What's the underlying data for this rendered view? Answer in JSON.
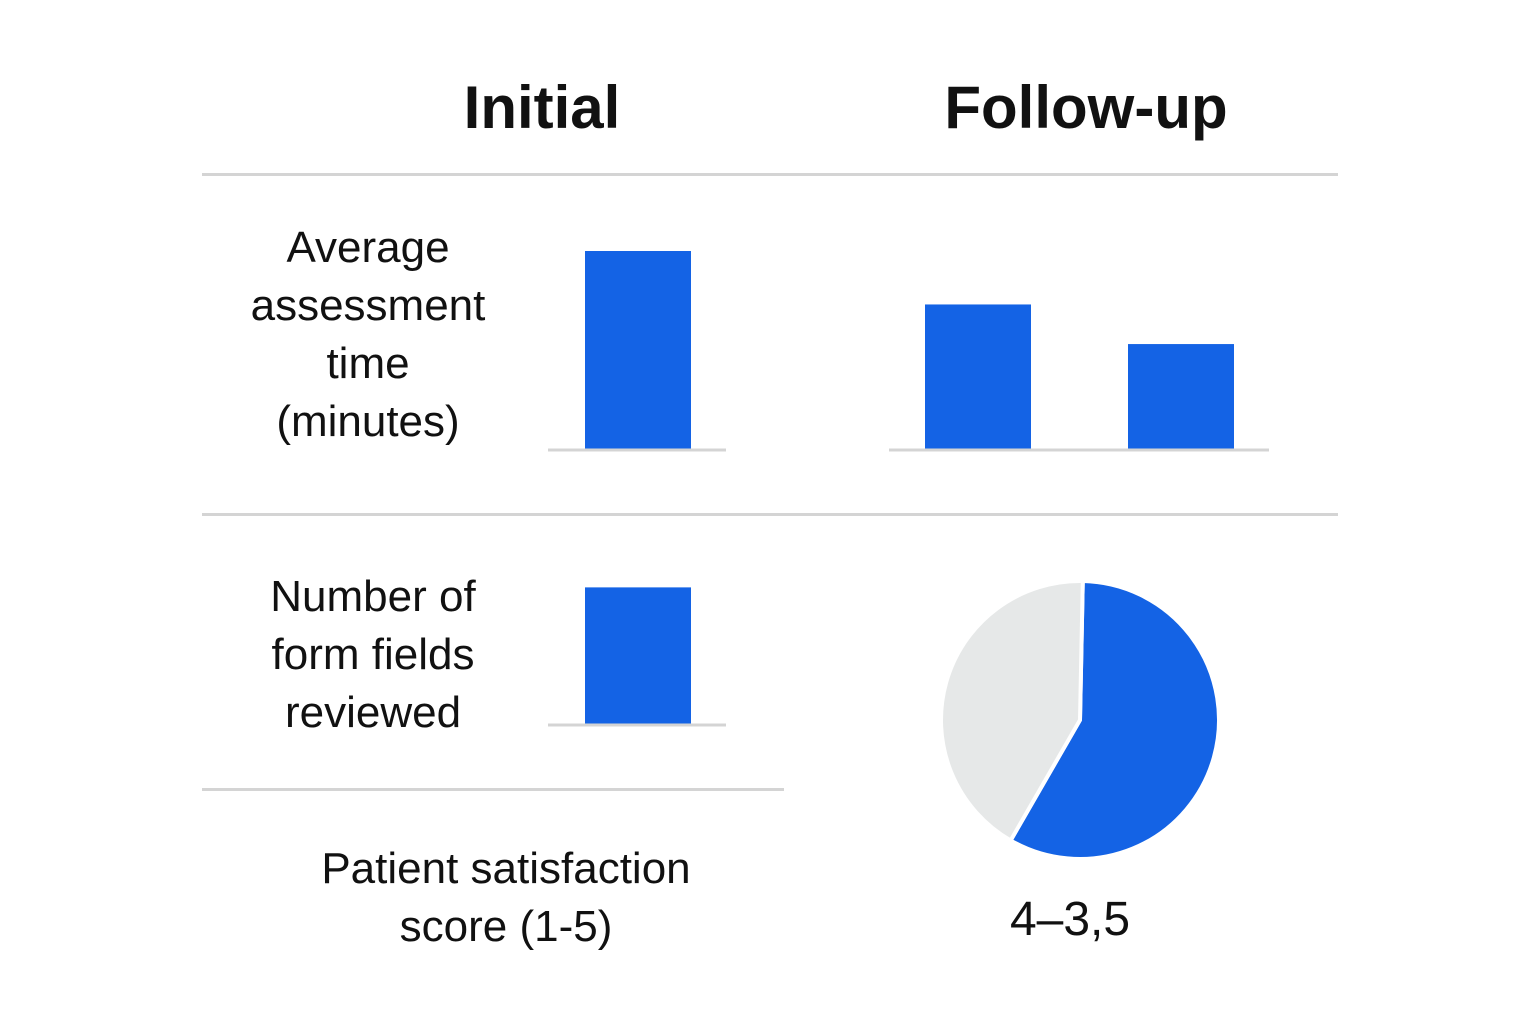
{
  "headers": {
    "initial": "Initial",
    "followup": "Follow-up"
  },
  "rows": {
    "time_label": "Average\nassessment\ntime\n(minutes)",
    "fields_label": "Number of\nform fields\nreviewed",
    "satisfaction_label": "Patient satisfaction\nscore (1-5)",
    "satisfaction_value": "4–3,5"
  },
  "colors": {
    "bar": "#1463e5",
    "pie_rest": "#e6e8e8",
    "rule": "#d4d4d4"
  },
  "chart_data": [
    {
      "type": "bar",
      "panel": "initial-assessment-time",
      "values": [
        1.0
      ],
      "note_scale": "relative heights only; no axis ticks printed",
      "ylim": [
        0,
        1.0
      ]
    },
    {
      "type": "bar",
      "panel": "followup-assessment-time",
      "values": [
        0.73,
        0.53
      ],
      "ylim": [
        0,
        1.0
      ]
    },
    {
      "type": "bar",
      "panel": "initial-form-fields",
      "values": [
        0.69
      ],
      "ylim": [
        0,
        1.0
      ]
    },
    {
      "type": "pie",
      "panel": "followup-satisfaction",
      "slices": [
        0.58,
        0.42
      ],
      "slice_colors": [
        "#1463e5",
        "#e6e8e8"
      ]
    }
  ]
}
